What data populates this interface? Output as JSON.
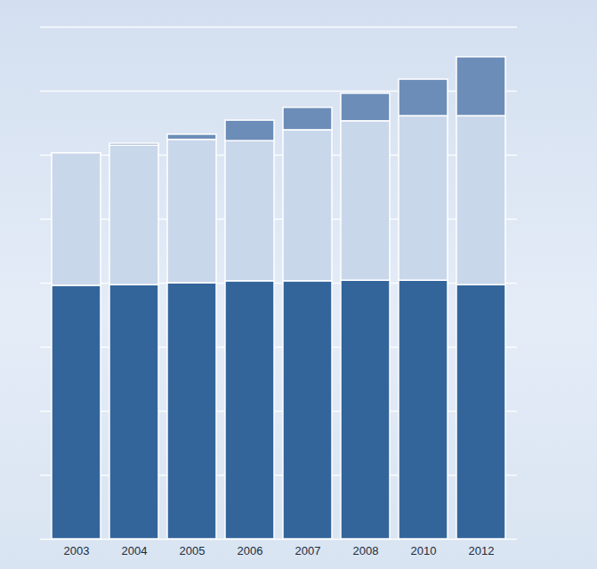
{
  "chart_data": {
    "type": "bar",
    "stacked": true,
    "categories": [
      "2003",
      "2004",
      "2005",
      "2006",
      "2007",
      "2008",
      "2010",
      "2012"
    ],
    "series": [
      {
        "color": "#33659b",
        "values": [
          3.96,
          3.97,
          4.0,
          4.03,
          4.03,
          4.04,
          4.04,
          3.97
        ]
      },
      {
        "color": "#c9d7eb",
        "values": [
          2.07,
          2.18,
          2.24,
          2.19,
          2.36,
          2.49,
          2.57,
          2.64
        ]
      },
      {
        "color": "#6c8db8",
        "values": [
          0,
          0.03,
          0.08,
          0.32,
          0.35,
          0.43,
          0.57,
          0.92
        ]
      }
    ],
    "ylim": [
      0,
      8
    ],
    "yticks": [
      0,
      1,
      2,
      3,
      4,
      5,
      6,
      7,
      8
    ],
    "grid": true,
    "tick_labels": "x"
  }
}
